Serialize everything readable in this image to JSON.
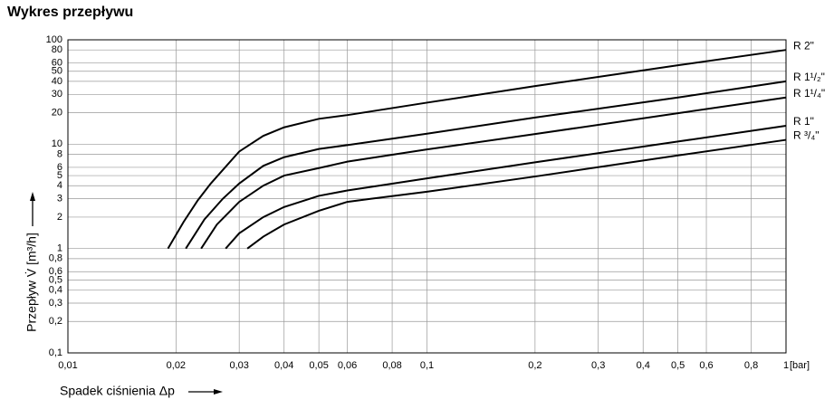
{
  "chart_data": {
    "type": "line",
    "title": "Wykres przepływu",
    "x_label": "Spadek ciśnienia Δp",
    "y_label": "Przepływ V̇ [m³/h]",
    "x_unit": "[bar]",
    "x_log": true,
    "y_log": true,
    "grid": true,
    "legend": "line-end",
    "xlim": [
      0.01,
      1
    ],
    "ylim": [
      0.1,
      100
    ],
    "xticks": [
      {
        "value": 0.01,
        "label": "0,01"
      },
      {
        "value": 0.02,
        "label": "0,02"
      },
      {
        "value": 0.03,
        "label": "0,03"
      },
      {
        "value": 0.04,
        "label": "0,04"
      },
      {
        "value": 0.05,
        "label": "0,05"
      },
      {
        "value": 0.06,
        "label": "0,06"
      },
      {
        "value": 0.08,
        "label": "0,08"
      },
      {
        "value": 0.1,
        "label": "0,1"
      },
      {
        "value": 0.2,
        "label": "0,2"
      },
      {
        "value": 0.3,
        "label": "0,3"
      },
      {
        "value": 0.4,
        "label": "0,4"
      },
      {
        "value": 0.5,
        "label": "0,5"
      },
      {
        "value": 0.6,
        "label": "0,6"
      },
      {
        "value": 0.8,
        "label": "0,8"
      },
      1
    ],
    "yticks": [
      100,
      80,
      60,
      50,
      40,
      30,
      20,
      10,
      8,
      6,
      5,
      4,
      3,
      2,
      1,
      {
        "value": 0.8,
        "label": "0,8"
      },
      {
        "value": 0.6,
        "label": "0,6"
      },
      {
        "value": 0.5,
        "label": "0,5"
      },
      {
        "value": 0.4,
        "label": "0,4"
      },
      {
        "value": 0.3,
        "label": "0,3"
      },
      {
        "value": 0.2,
        "label": "0,2"
      },
      {
        "value": 0.1,
        "label": "0,1"
      }
    ],
    "series": [
      {
        "name": "R 2\"",
        "color": "#000000",
        "x": [
          0.019,
          0.021,
          0.023,
          0.025,
          0.03,
          0.035,
          0.04,
          0.05,
          0.06,
          0.1,
          0.2,
          0.5,
          1
        ],
        "values": [
          1,
          1.8,
          2.9,
          4.2,
          8.5,
          12,
          14.5,
          17.5,
          19,
          25,
          36,
          57,
          80
        ]
      },
      {
        "name": "R 1¹/₂\"",
        "color": "#000000",
        "x": [
          0.0213,
          0.024,
          0.027,
          0.03,
          0.035,
          0.04,
          0.05,
          0.06,
          0.1,
          0.2,
          0.5,
          1
        ],
        "values": [
          1,
          1.9,
          3,
          4.2,
          6.2,
          7.5,
          9,
          9.8,
          12.6,
          18,
          28,
          40
        ]
      },
      {
        "name": "R 1¹/₄\"",
        "color": "#000000",
        "x": [
          0.0235,
          0.026,
          0.03,
          0.035,
          0.04,
          0.05,
          0.06,
          0.1,
          0.2,
          0.5,
          1
        ],
        "values": [
          1,
          1.7,
          2.8,
          4,
          5,
          5.9,
          6.8,
          8.9,
          12.5,
          19.8,
          28
        ]
      },
      {
        "name": "R 1\"",
        "color": "#000000",
        "x": [
          0.0275,
          0.03,
          0.035,
          0.04,
          0.05,
          0.06,
          0.07,
          0.1,
          0.2,
          0.5,
          1
        ],
        "values": [
          1,
          1.4,
          2,
          2.5,
          3.2,
          3.6,
          3.9,
          4.7,
          6.7,
          10.6,
          15
        ]
      },
      {
        "name": "R ³/₄\"",
        "color": "#000000",
        "x": [
          0.0316,
          0.035,
          0.04,
          0.05,
          0.06,
          0.07,
          0.1,
          0.2,
          0.5,
          1
        ],
        "values": [
          1,
          1.3,
          1.7,
          2.3,
          2.8,
          3,
          3.5,
          4.9,
          7.8,
          11
        ]
      }
    ]
  }
}
